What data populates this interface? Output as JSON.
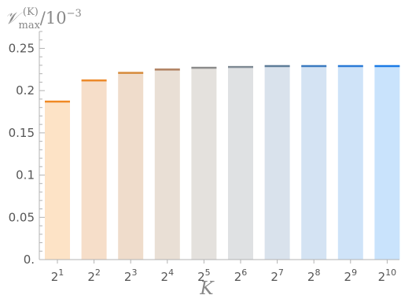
{
  "chart_data": {
    "type": "bar",
    "title": "",
    "ylabel": "𝒱max(K)/10−3",
    "ylabel_parts": {
      "symbol": "𝒱",
      "subscript": "max",
      "superscript": "(K)",
      "rest": "/10",
      "rest_exponent": "−3"
    },
    "xlabel": "K",
    "categories": [
      {
        "base": "2",
        "exp": "1"
      },
      {
        "base": "2",
        "exp": "2"
      },
      {
        "base": "2",
        "exp": "3"
      },
      {
        "base": "2",
        "exp": "4"
      },
      {
        "base": "2",
        "exp": "5"
      },
      {
        "base": "2",
        "exp": "6"
      },
      {
        "base": "2",
        "exp": "7"
      },
      {
        "base": "2",
        "exp": "8"
      },
      {
        "base": "2",
        "exp": "9"
      },
      {
        "base": "2",
        "exp": "10"
      }
    ],
    "values": [
      0.187,
      0.212,
      0.221,
      0.225,
      0.227,
      0.228,
      0.229,
      0.229,
      0.229,
      0.229
    ],
    "bar_colors": [
      "#fde3c6",
      "#f6dec9",
      "#efdccb",
      "#e9dfd5",
      "#e4e1dd",
      "#dfe1e3",
      "#d9e2ec",
      "#d4e3f3",
      "#cfe3f8",
      "#c9e3fc"
    ],
    "cap_colors": [
      "#f08a24",
      "#ec8a2a",
      "#d68a3a",
      "#b08060",
      "#8c8c8c",
      "#7f8a94",
      "#5d7c98",
      "#3a7ac0",
      "#2a7ad6",
      "#1a7ae6"
    ],
    "ylim": [
      0,
      0.27
    ],
    "yticks": [
      {
        "value": 0,
        "label": "0."
      },
      {
        "value": 0.05,
        "label": "0.05"
      },
      {
        "value": 0.1,
        "label": "0.1"
      },
      {
        "value": 0.15,
        "label": "0.15"
      },
      {
        "value": 0.2,
        "label": "0.2"
      },
      {
        "value": 0.25,
        "label": "0.25"
      }
    ],
    "minor_tick_step": 0.01,
    "grid": false,
    "legend": "none"
  }
}
